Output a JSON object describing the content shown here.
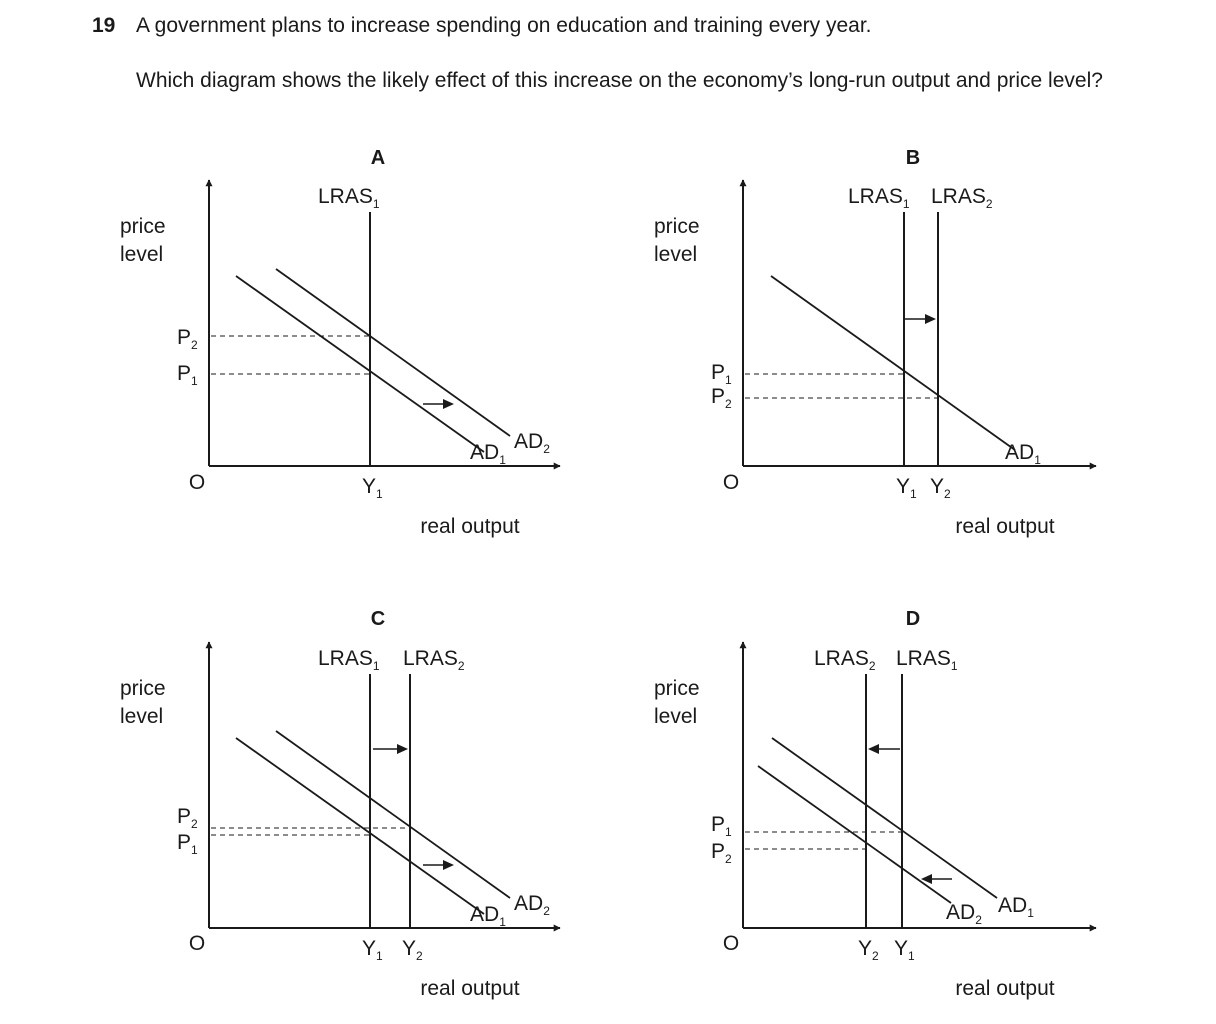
{
  "question": {
    "number": "19",
    "stem": "A government plans to increase spending on education and training every year.",
    "prompt": "Which diagram shows the likely effect of this increase on the economy’s long-run output and price level?"
  },
  "diagrams": [
    {
      "option": "A",
      "y_axis_label": [
        "price",
        "level"
      ],
      "x_axis_label": "real output",
      "origin": "O",
      "lras": [
        {
          "base": "LRAS",
          "sub": "1",
          "output": "Y1"
        }
      ],
      "ad_curves": [
        {
          "base": "AD",
          "sub": "1"
        },
        {
          "base": "AD",
          "sub": "2"
        }
      ],
      "ad_shift": "right",
      "lras_shift": "none",
      "price_levels": [
        {
          "base": "P",
          "sub": "1"
        },
        {
          "base": "P",
          "sub": "2"
        }
      ],
      "price_level_order_top_to_bottom": [
        "P2",
        "P1"
      ],
      "output_levels": [
        {
          "base": "Y",
          "sub": "1"
        }
      ]
    },
    {
      "option": "B",
      "y_axis_label": [
        "price",
        "level"
      ],
      "x_axis_label": "real output",
      "origin": "O",
      "lras": [
        {
          "base": "LRAS",
          "sub": "1",
          "output": "Y1"
        },
        {
          "base": "LRAS",
          "sub": "2",
          "output": "Y2"
        }
      ],
      "ad_curves": [
        {
          "base": "AD",
          "sub": "1"
        }
      ],
      "ad_shift": "none",
      "lras_shift": "right",
      "price_levels": [
        {
          "base": "P",
          "sub": "1"
        },
        {
          "base": "P",
          "sub": "2"
        }
      ],
      "price_level_order_top_to_bottom": [
        "P1",
        "P2"
      ],
      "output_levels": [
        {
          "base": "Y",
          "sub": "1"
        },
        {
          "base": "Y",
          "sub": "2"
        }
      ]
    },
    {
      "option": "C",
      "y_axis_label": [
        "price",
        "level"
      ],
      "x_axis_label": "real output",
      "origin": "O",
      "lras": [
        {
          "base": "LRAS",
          "sub": "1",
          "output": "Y1"
        },
        {
          "base": "LRAS",
          "sub": "2",
          "output": "Y2"
        }
      ],
      "ad_curves": [
        {
          "base": "AD",
          "sub": "1"
        },
        {
          "base": "AD",
          "sub": "2"
        }
      ],
      "ad_shift": "right",
      "lras_shift": "right",
      "price_levels": [
        {
          "base": "P",
          "sub": "2"
        },
        {
          "base": "P",
          "sub": "1"
        }
      ],
      "price_level_order_top_to_bottom": [
        "P2",
        "P1"
      ],
      "output_levels": [
        {
          "base": "Y",
          "sub": "1"
        },
        {
          "base": "Y",
          "sub": "2"
        }
      ]
    },
    {
      "option": "D",
      "y_axis_label": [
        "price",
        "level"
      ],
      "x_axis_label": "real output",
      "origin": "O",
      "lras": [
        {
          "base": "LRAS",
          "sub": "2",
          "output": "Y2"
        },
        {
          "base": "LRAS",
          "sub": "1",
          "output": "Y1"
        }
      ],
      "ad_curves": [
        {
          "base": "AD",
          "sub": "2"
        },
        {
          "base": "AD",
          "sub": "1"
        }
      ],
      "ad_shift": "left",
      "lras_shift": "left",
      "price_levels": [
        {
          "base": "P",
          "sub": "1"
        },
        {
          "base": "P",
          "sub": "2"
        }
      ],
      "price_level_order_top_to_bottom": [
        "P1",
        "P2"
      ],
      "output_levels": [
        {
          "base": "Y",
          "sub": "2"
        },
        {
          "base": "Y",
          "sub": "1"
        }
      ]
    }
  ]
}
